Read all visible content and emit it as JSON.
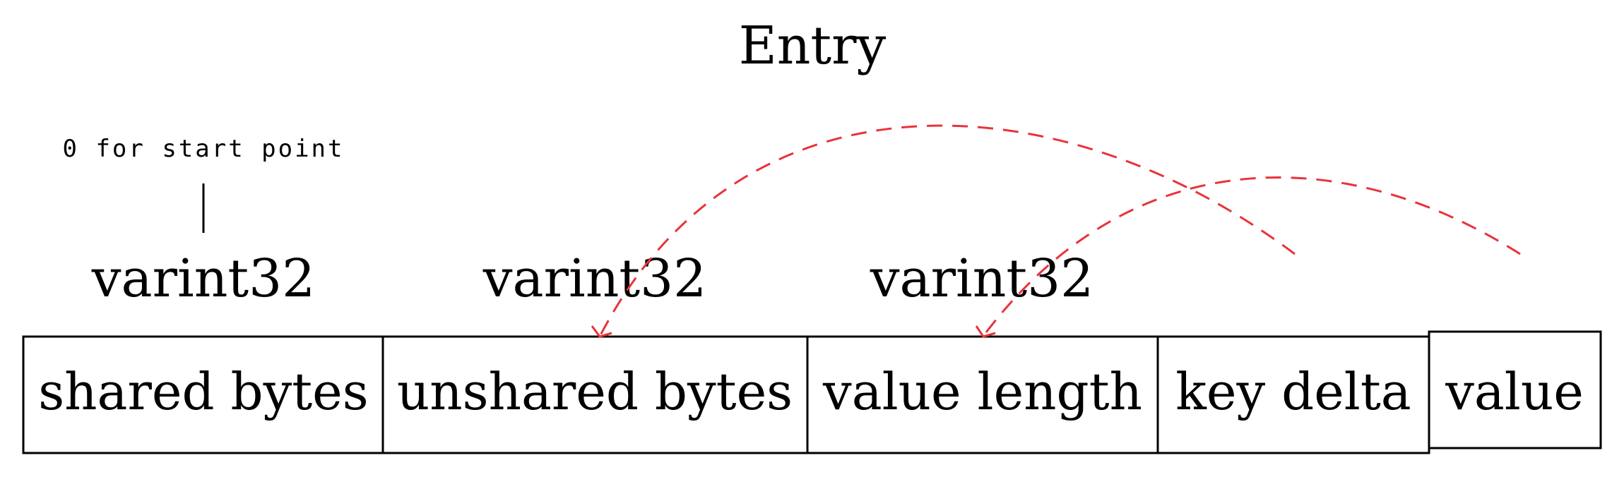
{
  "title": "Entry",
  "note": "0 for start point",
  "type_labels": [
    "varint32",
    "varint32",
    "varint32"
  ],
  "fields": {
    "shared": "shared bytes",
    "unshared": "unshared bytes",
    "value_length": "value length",
    "key_delta": "key delta",
    "value": "value"
  },
  "colors": {
    "arrow": "#e8333a",
    "stroke": "#000000"
  }
}
